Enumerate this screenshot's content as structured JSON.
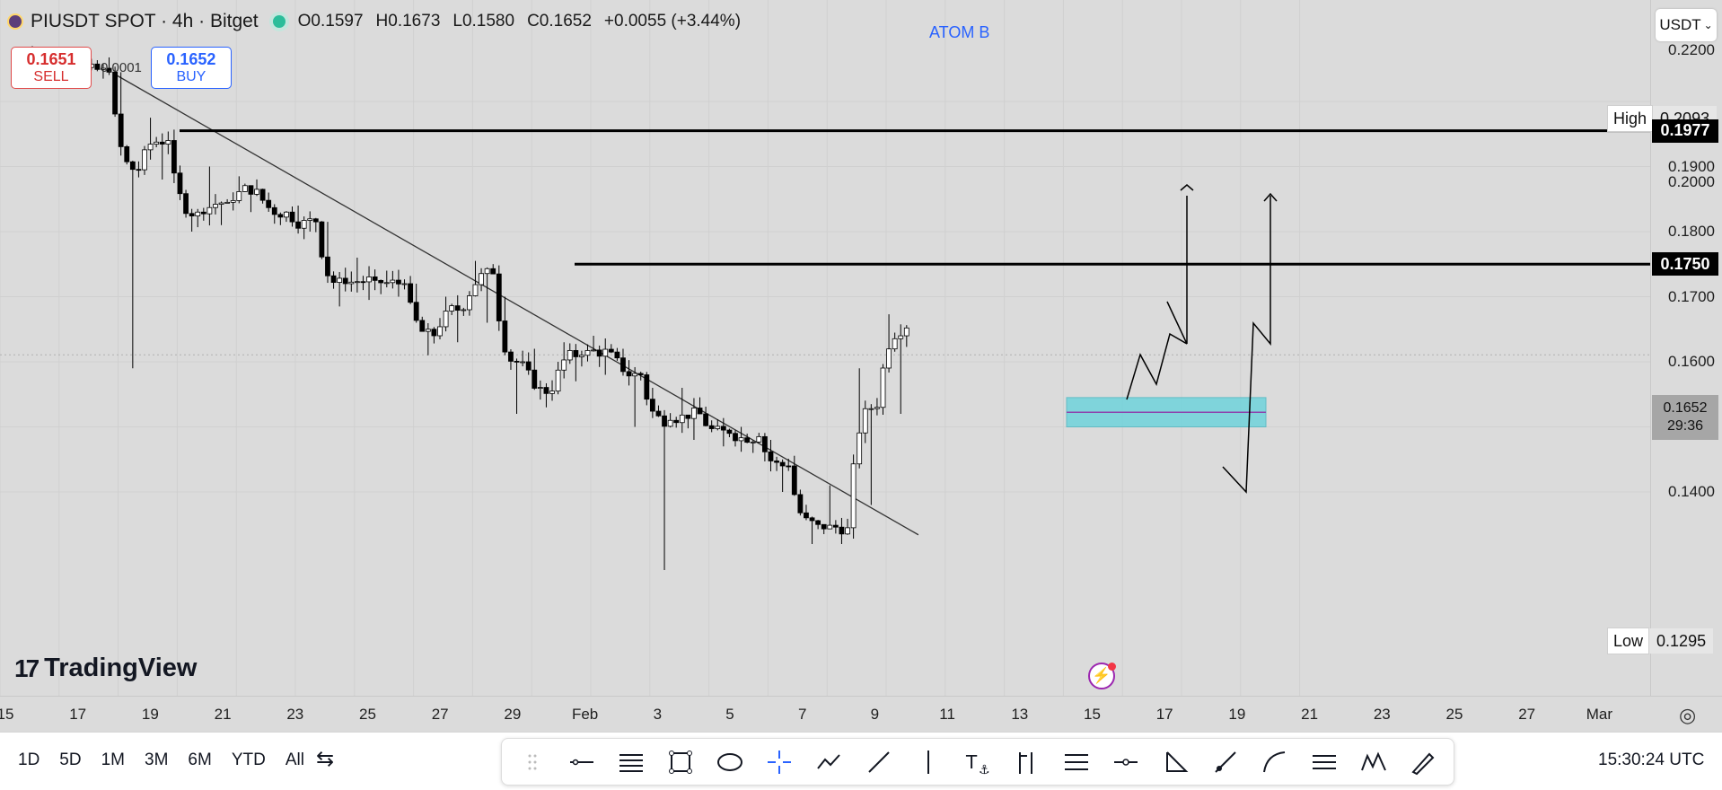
{
  "header": {
    "symbol": "PIUSDT SPOT · 4h · Bitget",
    "open": "O0.1597",
    "high": "H0.1673",
    "low": "L0.1580",
    "close": "C0.1652",
    "change": "+0.0055 (+3.44%)"
  },
  "trade": {
    "sell_price": "0.1651",
    "sell_label": "SELL",
    "spread": "0.0001",
    "buy_price": "0.1652",
    "buy_label": "BUY"
  },
  "watermark": "ATOM B",
  "currency": "USDT",
  "high_label": "High",
  "high_value": "0.2093",
  "low_label": "Low",
  "low_value": "0.1295",
  "level_upper": "0.1977",
  "level_lower": "0.1750",
  "current_price": "0.1652",
  "countdown": "29:36",
  "logo_text": "TradingView",
  "price_ticks": [
    "0.2200",
    "0.2000",
    "0.1900",
    "0.1800",
    "0.1700",
    "0.1600",
    "0.1500",
    "0.1400"
  ],
  "time_ticks": [
    "15",
    "17",
    "19",
    "21",
    "23",
    "25",
    "27",
    "29",
    "Feb",
    "3",
    "5",
    "7",
    "9",
    "11",
    "13",
    "15",
    "17",
    "19",
    "21",
    "23",
    "25",
    "27",
    "Mar"
  ],
  "ranges": [
    "1D",
    "5D",
    "1M",
    "3M",
    "6M",
    "YTD",
    "All"
  ],
  "clock": "15:30:24 UTC",
  "colors": {
    "up": "#ffffff",
    "down": "#000000",
    "zone": "#6fd3dc",
    "zone_line": "#8e44ad",
    "accent": "#2962ff"
  },
  "chart_data": {
    "type": "candlestick",
    "title": "",
    "xlabel": "",
    "ylabel": "",
    "ylim": [
      0.1295,
      0.2093
    ],
    "x": [
      "Jan 16",
      "Jan 17",
      "Jan 18",
      "Jan 19",
      "Jan 20",
      "Jan 21",
      "Jan 22",
      "Jan 23",
      "Jan 24",
      "Jan 25",
      "Jan 26",
      "Jan 27",
      "Jan 28",
      "Jan 29",
      "Jan 30",
      "Jan 31",
      "Feb 1",
      "Feb 2",
      "Feb 3",
      "Feb 4",
      "Feb 5",
      "Feb 6",
      "Feb 7",
      "Feb 8",
      "Feb 9",
      "Feb 10",
      "Feb 11",
      "Feb 12",
      "Feb 13",
      "Feb 14"
    ],
    "close": [
      0.2055,
      0.2052,
      0.2045,
      0.1895,
      0.194,
      0.183,
      0.1845,
      0.1865,
      0.183,
      0.1815,
      0.172,
      0.1725,
      0.172,
      0.164,
      0.168,
      0.1735,
      0.16,
      0.1555,
      0.161,
      0.1615,
      0.158,
      0.151,
      0.152,
      0.149,
      0.1485,
      0.144,
      0.135,
      0.1345,
      0.153,
      0.1652
    ],
    "ranges_hl": [
      [
        0.2085,
        0.202
      ],
      [
        0.2065,
        0.203
      ],
      [
        0.206,
        0.2035
      ],
      [
        0.2045,
        0.159
      ],
      [
        0.1975,
        0.188
      ],
      [
        0.189,
        0.18
      ],
      [
        0.19,
        0.181
      ],
      [
        0.1885,
        0.183
      ],
      [
        0.186,
        0.181
      ],
      [
        0.184,
        0.18
      ],
      [
        0.1815,
        0.1685
      ],
      [
        0.176,
        0.1695
      ],
      [
        0.174,
        0.17
      ],
      [
        0.172,
        0.161
      ],
      [
        0.17,
        0.163
      ],
      [
        0.1755,
        0.166
      ],
      [
        0.17,
        0.152
      ],
      [
        0.162,
        0.153
      ],
      [
        0.163,
        0.157
      ],
      [
        0.164,
        0.158
      ],
      [
        0.162,
        0.15
      ],
      [
        0.156,
        0.128
      ],
      [
        0.156,
        0.148
      ],
      [
        0.151,
        0.147
      ],
      [
        0.15,
        0.146
      ],
      [
        0.148,
        0.14
      ],
      [
        0.14,
        0.132
      ],
      [
        0.141,
        0.132
      ],
      [
        0.159,
        0.138
      ],
      [
        0.1673,
        0.152
      ]
    ],
    "trendline": {
      "from": [
        "Jan 19",
        0.2055
      ],
      "to": [
        "Feb 15",
        0.137
      ]
    },
    "levels": [
      0.1977,
      0.175
    ],
    "zone": [
      0.15,
      0.1545
    ],
    "current": 0.1652,
    "high": 0.2093,
    "low": 0.1295
  }
}
